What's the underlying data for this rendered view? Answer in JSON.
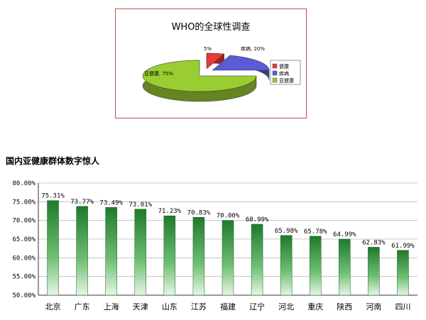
{
  "chart_data": [
    {
      "type": "pie",
      "title": "WHO的全球性调查",
      "slices": [
        {
          "label": "健康",
          "value": 5,
          "display": "5%",
          "color": "#e83a3a"
        },
        {
          "label": "疾病",
          "value": 20,
          "display": "疾病, 20%",
          "color": "#5b5bd6"
        },
        {
          "label": "亚健康",
          "value": 75,
          "display": "亚健康, 75%",
          "color": "#9acd32"
        }
      ],
      "legend": [
        "健康",
        "疾病",
        "亚健康"
      ],
      "legend_position": "right"
    },
    {
      "type": "bar",
      "title": "国内亚健康群体数字惊人",
      "categories": [
        "北京",
        "广东",
        "上海",
        "天津",
        "山东",
        "江苏",
        "福建",
        "辽宁",
        "河北",
        "重庆",
        "陕西",
        "河南",
        "四川"
      ],
      "values": [
        75.31,
        73.77,
        73.49,
        73.01,
        71.23,
        70.83,
        70.0,
        68.99,
        65.98,
        65.78,
        64.99,
        62.83,
        61.99
      ],
      "value_labels": [
        "75.31%",
        "73.77%",
        "73.49%",
        "73.01%",
        "71.23%",
        "70.83%",
        "70.00%",
        "68.99%",
        "65.98%",
        "65.78%",
        "64.99%",
        "62.83%",
        "61.99%"
      ],
      "ylim": [
        50,
        80
      ],
      "yticks": [
        "50.00%",
        "55.00%",
        "60.00%",
        "65.00%",
        "70.00%",
        "75.00%",
        "80.00%"
      ],
      "grid": true,
      "bar_color": "#2e8b3a"
    }
  ]
}
